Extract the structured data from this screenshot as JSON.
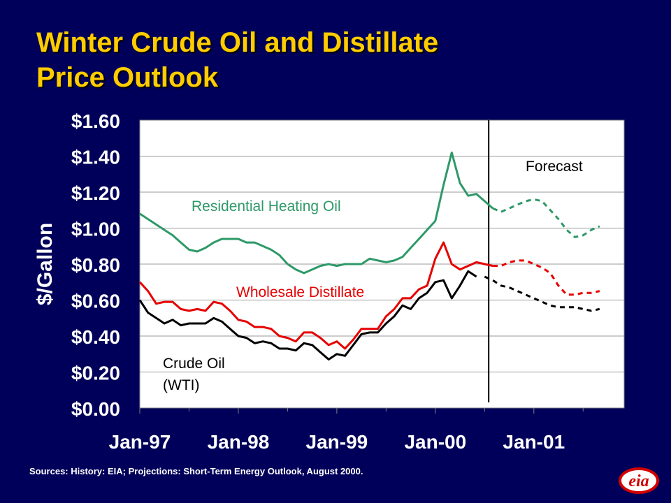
{
  "title_line1": "Winter Crude Oil and Distillate",
  "title_line2": "Price Outlook",
  "source": "Sources: History:  EIA;  Projections: Short-Term Energy Outlook, August 2000.",
  "logo": {
    "text": "eia",
    "colors": {
      "ring": "#d10000",
      "fill": "#ffffff"
    }
  },
  "colors": {
    "background": "#00005a",
    "title": "#ffcc00"
  },
  "chart_data": {
    "type": "line",
    "ylabel": "$/Gallon",
    "xlabel": "",
    "ylim": [
      0,
      1.6
    ],
    "yticks": [
      0,
      0.2,
      0.4,
      0.6,
      0.8,
      1.0,
      1.2,
      1.4,
      1.6
    ],
    "ytick_labels": [
      "$0.00",
      "$0.20",
      "$0.40",
      "$0.60",
      "$0.80",
      "$1.00",
      "$1.20",
      "$1.40",
      "$1.60"
    ],
    "x_labels": [
      "Jan-97",
      "Jan-98",
      "Jan-99",
      "Jan-00",
      "Jan-01"
    ],
    "x_label_months": [
      0,
      12,
      24,
      36,
      48
    ],
    "xlim_months": [
      0,
      59
    ],
    "grid": true,
    "forecast_start_month": 42.5,
    "forecast_label": "Forecast",
    "series": [
      {
        "name": "Residential Heating Oil",
        "color": "#2e9968",
        "history": [
          1.08,
          1.05,
          1.02,
          0.99,
          0.96,
          0.92,
          0.88,
          0.87,
          0.89,
          0.92,
          0.94,
          0.94,
          0.94,
          0.92,
          0.92,
          0.9,
          0.88,
          0.85,
          0.8,
          0.77,
          0.75,
          0.77,
          0.79,
          0.8,
          0.79,
          0.8,
          0.8,
          0.8,
          0.83,
          0.82,
          0.81,
          0.82,
          0.84,
          0.89,
          0.94,
          0.99,
          1.04,
          1.24,
          1.42,
          1.25,
          1.18,
          1.19,
          1.15,
          1.11
        ],
        "forecast_start": 43,
        "forecast": [
          1.11,
          1.09,
          1.11,
          1.13,
          1.15,
          1.16,
          1.15,
          1.1,
          1.05,
          0.99,
          0.95,
          0.96,
          0.99,
          1.01
        ]
      },
      {
        "name": "Wholesale Distillate",
        "color": "#e60000",
        "history": [
          0.7,
          0.65,
          0.58,
          0.59,
          0.59,
          0.55,
          0.54,
          0.55,
          0.54,
          0.59,
          0.58,
          0.54,
          0.49,
          0.48,
          0.45,
          0.45,
          0.44,
          0.4,
          0.39,
          0.37,
          0.42,
          0.42,
          0.39,
          0.35,
          0.37,
          0.33,
          0.38,
          0.44,
          0.44,
          0.44,
          0.51,
          0.55,
          0.61,
          0.61,
          0.66,
          0.68,
          0.83,
          0.92,
          0.8,
          0.77,
          0.79,
          0.81,
          0.8,
          0.79
        ],
        "forecast_start": 43,
        "forecast": [
          0.79,
          0.79,
          0.81,
          0.82,
          0.82,
          0.8,
          0.78,
          0.75,
          0.68,
          0.63,
          0.63,
          0.64,
          0.64,
          0.65
        ]
      },
      {
        "name": "Crude Oil (WTI)",
        "label_lines": [
          "Crude Oil",
          "(WTI)"
        ],
        "color": "#000000",
        "history": [
          0.6,
          0.53,
          0.5,
          0.47,
          0.49,
          0.46,
          0.47,
          0.47,
          0.47,
          0.5,
          0.48,
          0.44,
          0.4,
          0.39,
          0.36,
          0.37,
          0.36,
          0.33,
          0.33,
          0.32,
          0.36,
          0.35,
          0.31,
          0.27,
          0.3,
          0.29,
          0.35,
          0.41,
          0.42,
          0.42,
          0.47,
          0.51,
          0.57,
          0.55,
          0.61,
          0.64,
          0.7,
          0.71,
          0.61,
          0.68,
          0.76,
          0.73
        ],
        "forecast_start": 42,
        "forecast": [
          0.73,
          0.71,
          0.68,
          0.67,
          0.65,
          0.63,
          0.61,
          0.59,
          0.57,
          0.56,
          0.56,
          0.56,
          0.55,
          0.54,
          0.55
        ]
      }
    ]
  }
}
